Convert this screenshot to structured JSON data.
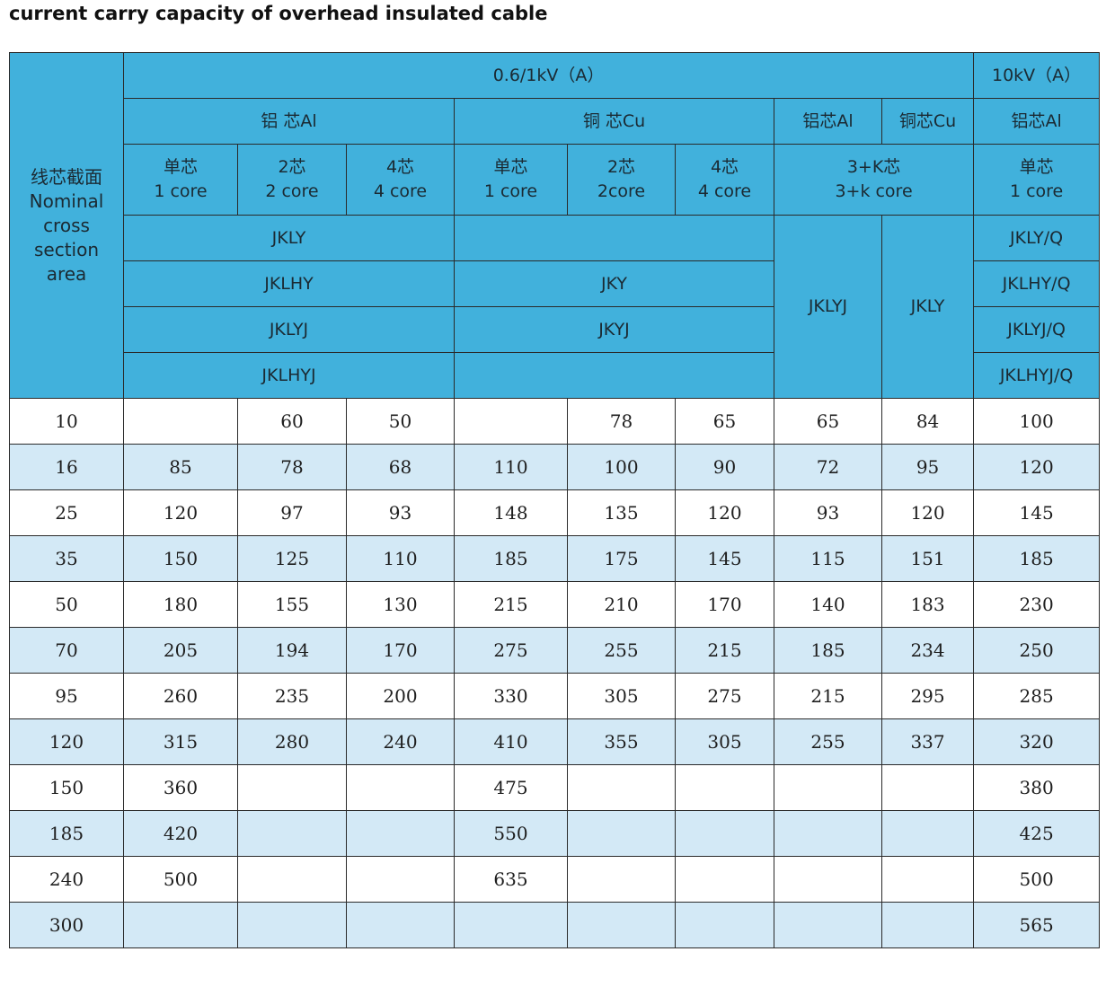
{
  "title": "current carry capacity of overhead insulated cable",
  "header": {
    "corner": [
      "线芯截面",
      "Nominal",
      "cross",
      "section",
      "area"
    ],
    "voltage_low": "0.6/1kV（A）",
    "voltage_high": "10kV（A）",
    "groups": {
      "al_main": "铝 芯Al",
      "cu_main": "铜 芯Cu",
      "al_3k": "铝芯Al",
      "cu_3k": "铜芯Cu",
      "al_10kv": "铝芯Al"
    },
    "cores": {
      "al_single": [
        "单芯",
        "1 core"
      ],
      "al_two": [
        "2芯",
        "2 core"
      ],
      "al_four": [
        "4芯",
        "4 core"
      ],
      "cu_single": [
        "单芯",
        "1 core"
      ],
      "cu_two": [
        "2芯",
        "2core"
      ],
      "cu_four": [
        "4芯",
        "4 core"
      ],
      "three_k": [
        "3+K芯",
        "3+k core"
      ],
      "hv_single": [
        "单芯",
        "1 core"
      ]
    },
    "models": {
      "al": [
        "JKLY",
        "JKLHY",
        "JKLYJ",
        "JKLHYJ"
      ],
      "cu": [
        "",
        "JKY",
        "JKYJ",
        ""
      ],
      "three_k_al": "JKLYJ",
      "three_k_cu": "JKLY",
      "hv": [
        "JKLY/Q",
        "JKLHY/Q",
        "JKLYJ/Q",
        "JKLHYJ/Q"
      ]
    }
  },
  "rows": [
    [
      "10",
      "",
      "60",
      "50",
      "",
      "78",
      "65",
      "65",
      "84",
      "100"
    ],
    [
      "16",
      "85",
      "78",
      "68",
      "110",
      "100",
      "90",
      "72",
      "95",
      "120"
    ],
    [
      "25",
      "120",
      "97",
      "93",
      "148",
      "135",
      "120",
      "93",
      "120",
      "145"
    ],
    [
      "35",
      "150",
      "125",
      "110",
      "185",
      "175",
      "145",
      "115",
      "151",
      "185"
    ],
    [
      "50",
      "180",
      "155",
      "130",
      "215",
      "210",
      "170",
      "140",
      "183",
      "230"
    ],
    [
      "70",
      "205",
      "194",
      "170",
      "275",
      "255",
      "215",
      "185",
      "234",
      "250"
    ],
    [
      "95",
      "260",
      "235",
      "200",
      "330",
      "305",
      "275",
      "215",
      "295",
      "285"
    ],
    [
      "120",
      "315",
      "280",
      "240",
      "410",
      "355",
      "305",
      "255",
      "337",
      "320"
    ],
    [
      "150",
      "360",
      "",
      "",
      "475",
      "",
      "",
      "",
      "",
      "380"
    ],
    [
      "185",
      "420",
      "",
      "",
      "550",
      "",
      "",
      "",
      "",
      "425"
    ],
    [
      "240",
      "500",
      "",
      "",
      "635",
      "",
      "",
      "",
      "",
      "500"
    ],
    [
      "300",
      "",
      "",
      "",
      "",
      "",
      "",
      "",
      "",
      "565"
    ]
  ],
  "colors": {
    "header_bg": "#41b1dc",
    "stripe_bg": "#d3e9f6",
    "border": "#2a2a2a"
  }
}
